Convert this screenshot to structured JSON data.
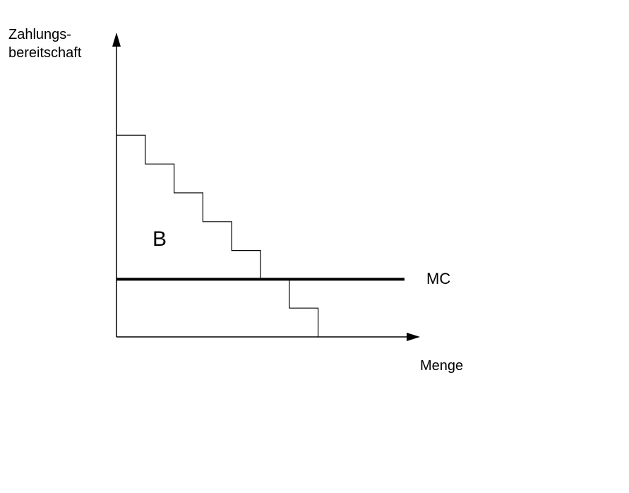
{
  "ylabel_line1": "Zahlungs-",
  "ylabel_line2": "bereitschaft",
  "xlabel": "Menge",
  "mc_label": "MC",
  "area_label": "B",
  "chart_data": {
    "type": "line",
    "title": "",
    "xlabel": "Menge",
    "ylabel": "Zahlungsbereitschaft",
    "series": [
      {
        "name": "",
        "shape": "step",
        "x": [
          0,
          1,
          2,
          3,
          4,
          5,
          6,
          7
        ],
        "y": [
          7,
          6,
          5,
          4,
          3,
          2,
          1,
          0
        ]
      },
      {
        "name": "MC",
        "shape": "horizontal",
        "x": [
          0,
          10
        ],
        "y": [
          2,
          2
        ]
      }
    ],
    "annotations": [
      "B"
    ],
    "xlim": [
      0,
      10.5
    ],
    "ylim": [
      0,
      10
    ],
    "grid": false
  }
}
